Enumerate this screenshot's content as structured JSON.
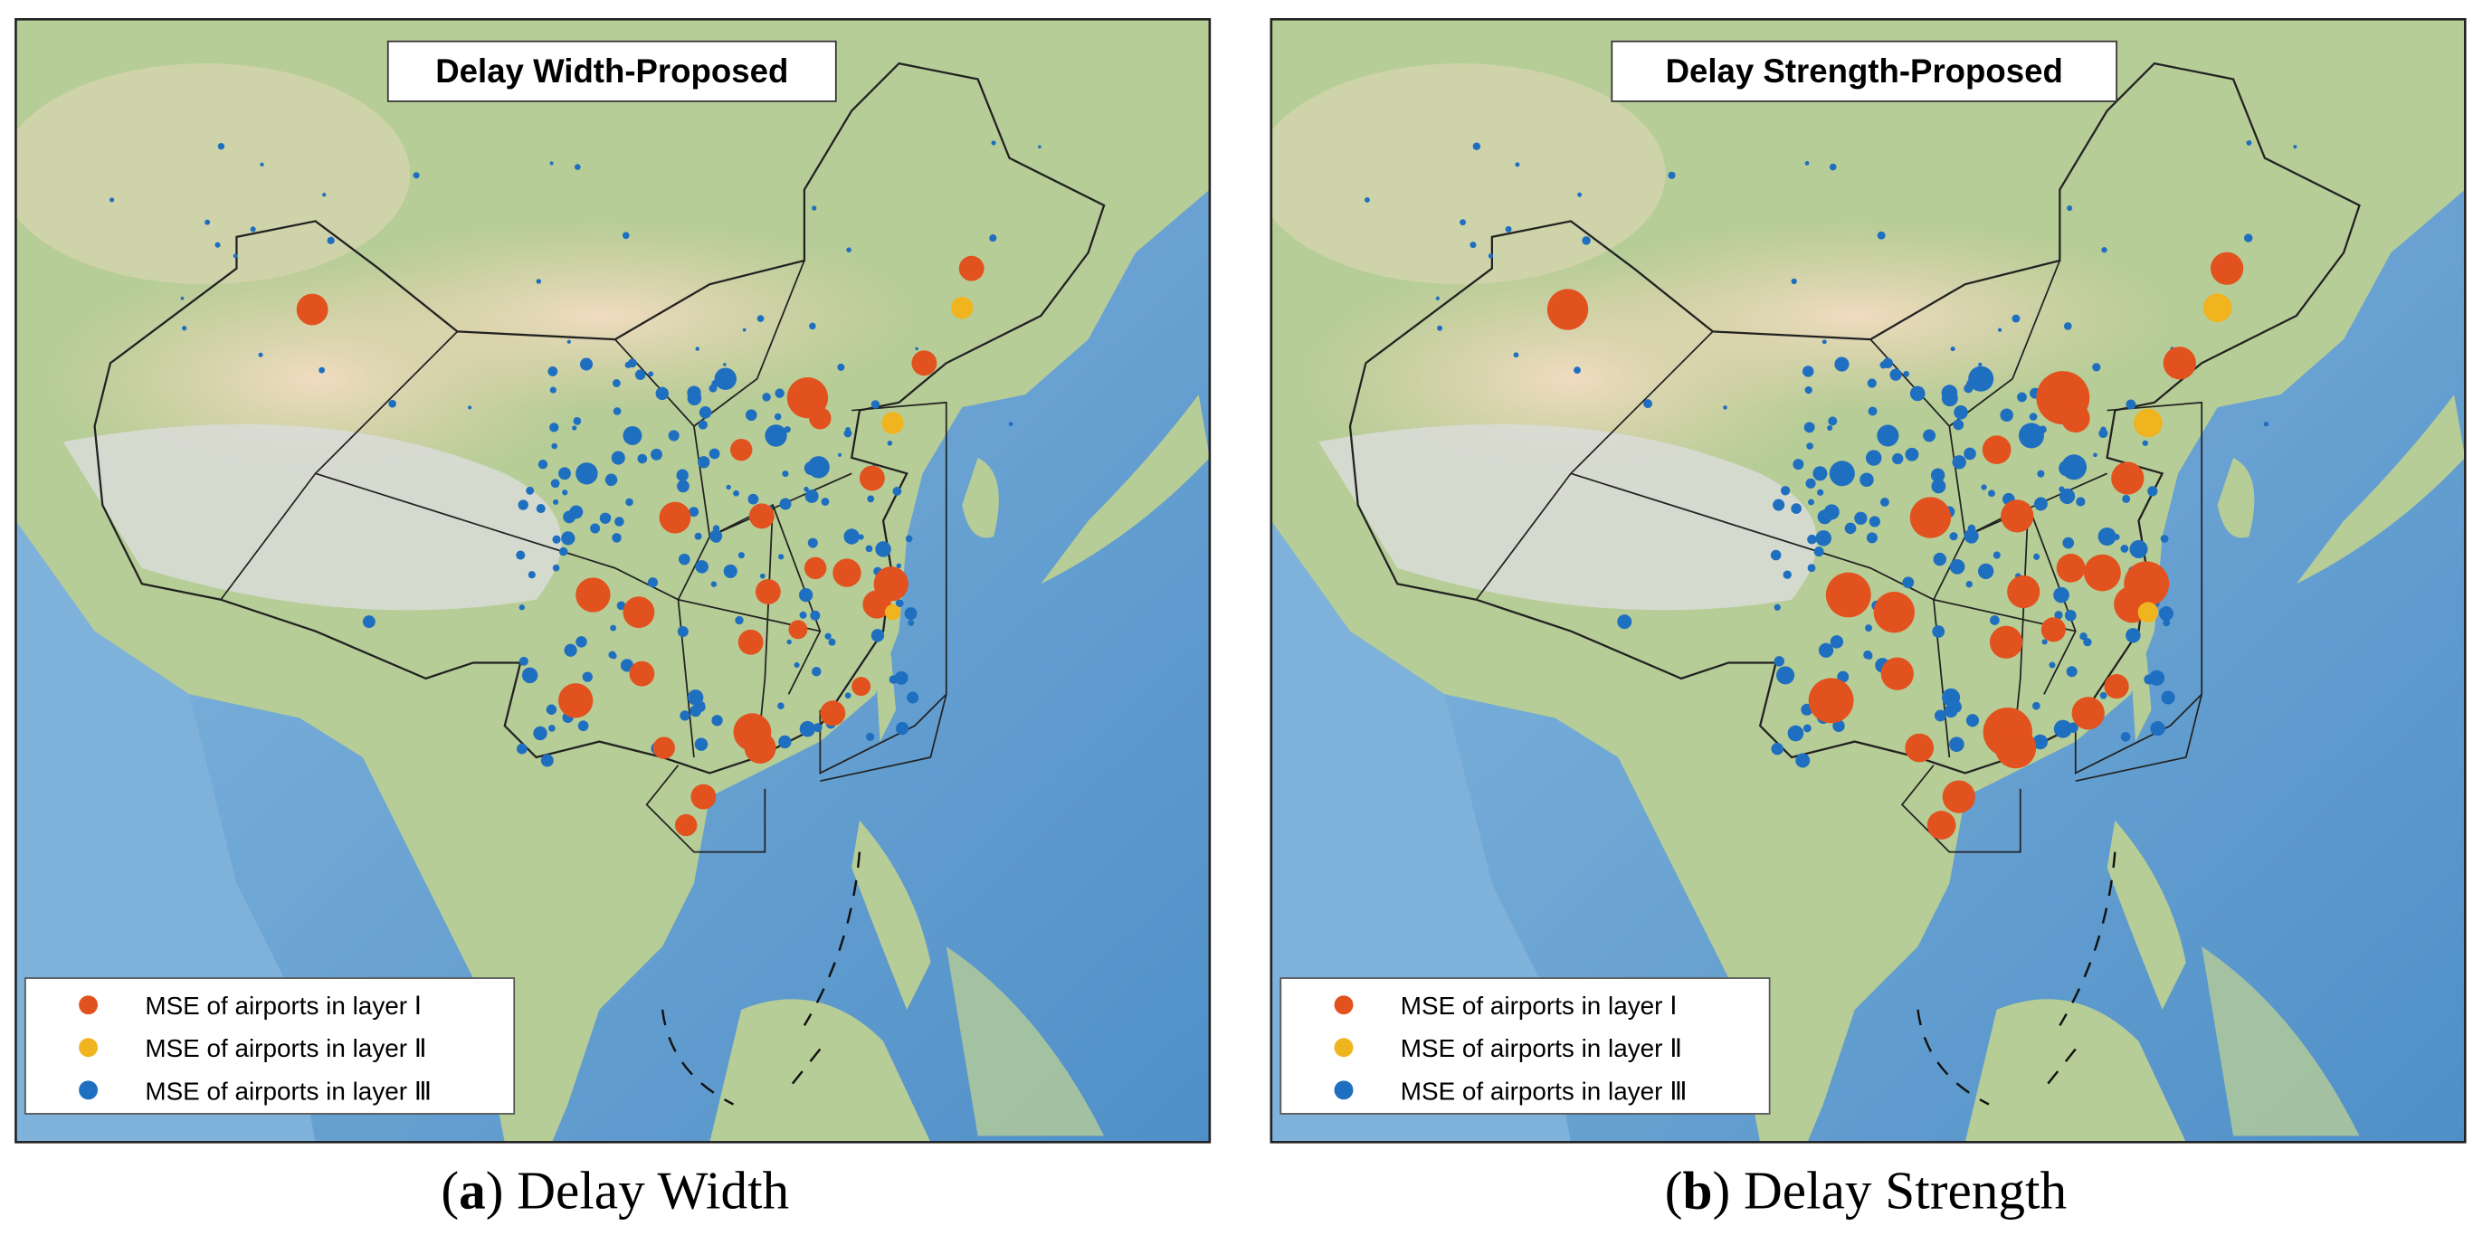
{
  "panels": [
    {
      "title": "Delay Width-Proposed",
      "legend": [
        "MSE of airports in layer Ⅰ",
        "MSE of airports in layer Ⅱ",
        "MSE of airports in layer Ⅲ"
      ],
      "caption": [
        "(",
        "a",
        ") Delay Width"
      ]
    },
    {
      "title": "Delay Strength-Proposed",
      "legend": [
        "MSE of airports in layer Ⅰ",
        "MSE of airports in layer Ⅱ",
        "MSE of airports in layer Ⅲ"
      ],
      "caption": [
        "(",
        "b",
        ") Delay Strength"
      ]
    }
  ]
}
